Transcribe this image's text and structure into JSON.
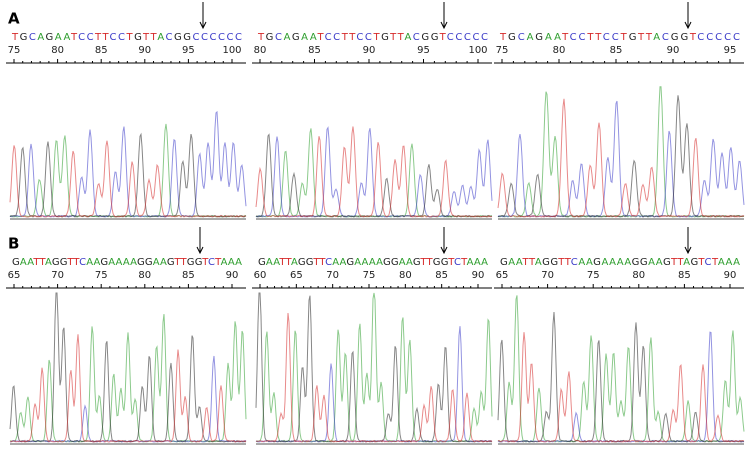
{
  "base_colors": {
    "A": "#2e9e2e",
    "C": "#3b3bc8",
    "G": "#222222",
    "T": "#d62a2a"
  },
  "panels": [
    {
      "label": "A",
      "traces": [
        {
          "sequence": "TGCAGAATCCTTCCTGTTACGGCCCCCC",
          "ticks": [
            75,
            80,
            85,
            90,
            95,
            100
          ]
        },
        {
          "sequence": "TGCAGAATCCTTCCTGTTACGGTCCCCC",
          "ticks": [
            80,
            85,
            90,
            95,
            100
          ]
        },
        {
          "sequence": "TGCAGAATCCTTCCTGTTACGGTCCCCC",
          "ticks": [
            75,
            80,
            85,
            90,
            95
          ]
        }
      ]
    },
    {
      "label": "B",
      "traces": [
        {
          "sequence": "GAATTAGGTTCAAGAAAAGGAAGTTGGTCTAAA",
          "ticks": [
            65,
            70,
            75,
            80,
            85,
            90
          ]
        },
        {
          "sequence": "GAATTAGGTTCAAGAAAAGGAAGTTGGTCTAAA",
          "ticks": [
            60,
            65,
            70,
            75,
            80,
            85,
            90
          ]
        },
        {
          "sequence": "GAATTAGGTTCAAGAAAAGGAAGTTAGTCTAAA",
          "ticks": [
            65,
            70,
            75,
            80,
            85,
            90
          ]
        }
      ]
    }
  ]
}
